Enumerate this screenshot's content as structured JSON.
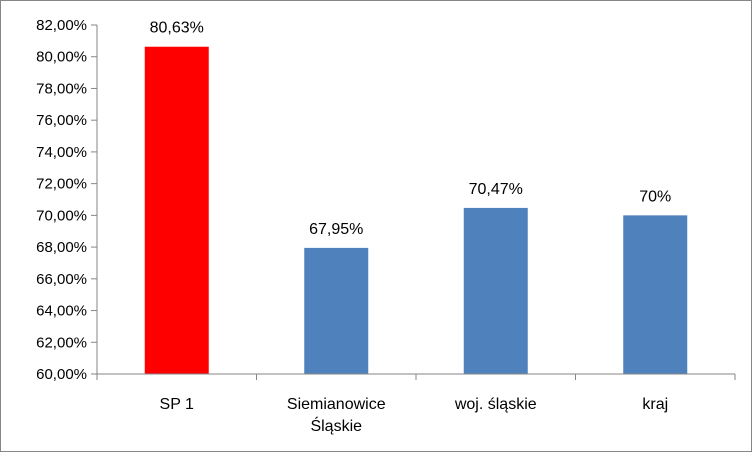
{
  "chart_data": {
    "type": "bar",
    "title": "",
    "xlabel": "",
    "ylabel": "",
    "categories": [
      [
        "SP 1"
      ],
      [
        "Siemianowice",
        "Śląskie"
      ],
      [
        "woj. śląskie"
      ],
      [
        "kraj"
      ]
    ],
    "values": [
      80.63,
      67.95,
      70.47,
      70.0
    ],
    "data_labels": [
      "80,63%",
      "67,95%",
      "70,47%",
      "70%"
    ],
    "bar_colors": [
      "#ff0000",
      "#4f81bd",
      "#4f81bd",
      "#4f81bd"
    ],
    "ylim": [
      60,
      82
    ],
    "ytick_values": [
      60,
      62,
      64,
      66,
      68,
      70,
      72,
      74,
      76,
      78,
      80,
      82
    ],
    "ytick_labels": [
      "60,00%",
      "62,00%",
      "64,00%",
      "66,00%",
      "68,00%",
      "70,00%",
      "72,00%",
      "74,00%",
      "76,00%",
      "78,00%",
      "80,00%",
      "82,00%"
    ],
    "grid": false,
    "legend": "none"
  }
}
